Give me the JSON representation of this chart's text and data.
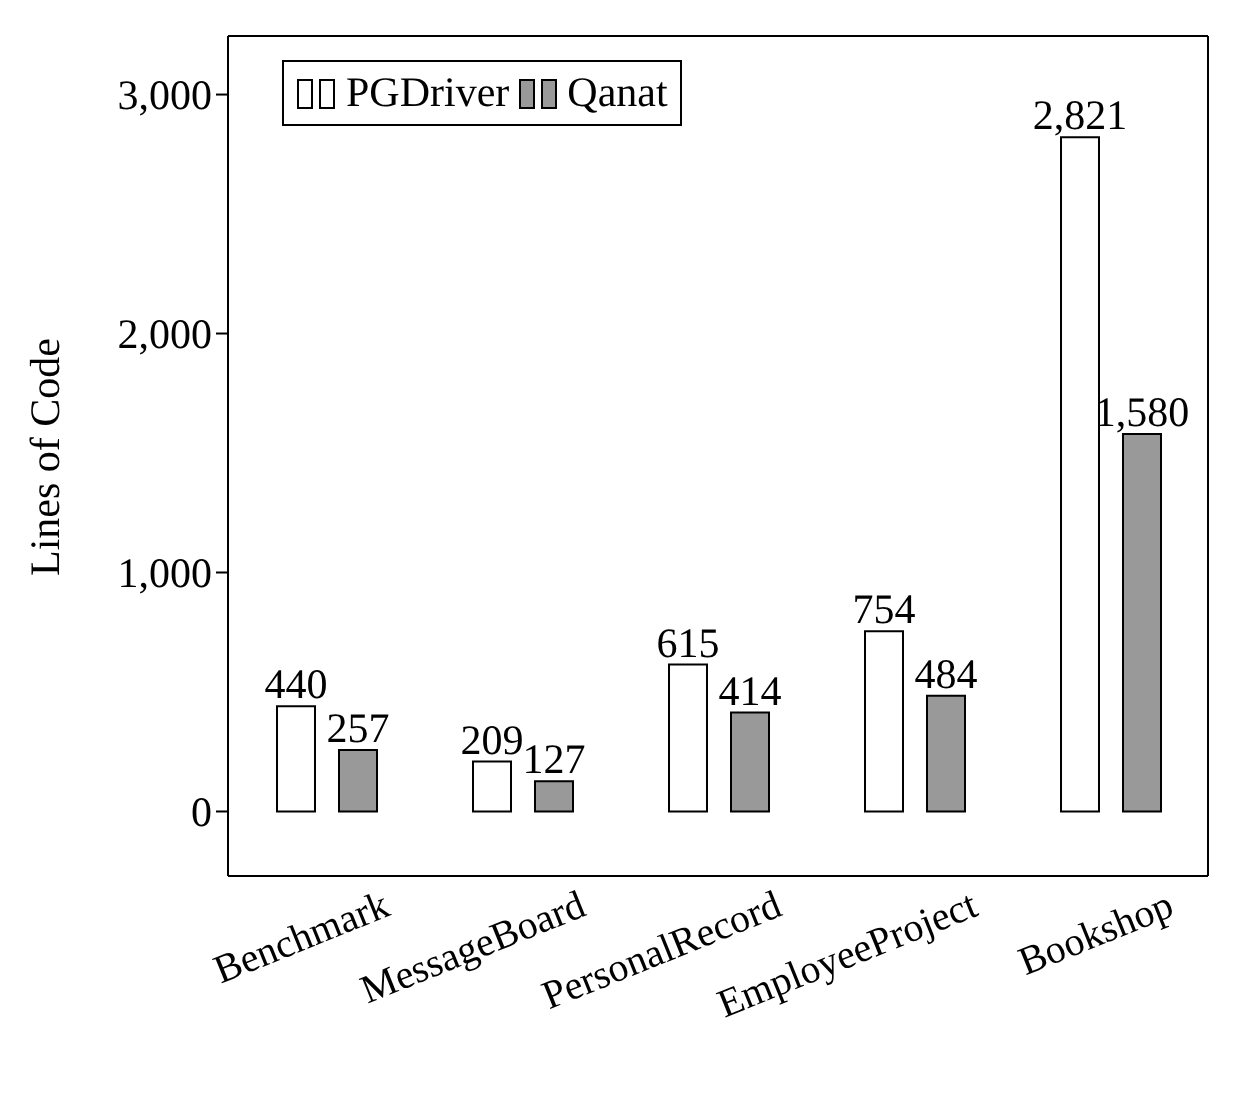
{
  "chart_data": {
    "type": "bar",
    "ylabel": "Lines of Code",
    "categories": [
      "Benchmark",
      "MessageBoard",
      "PersonalRecord",
      "EmployeeProject",
      "Bookshop"
    ],
    "series": [
      {
        "name": "PGDriver",
        "color": "#ffffff",
        "values": [
          440,
          209,
          615,
          754,
          2821
        ],
        "value_labels": [
          "440",
          "209",
          "615",
          "754",
          "2,821"
        ]
      },
      {
        "name": "Qanat",
        "color": "#999999",
        "values": [
          257,
          127,
          414,
          484,
          1580
        ],
        "value_labels": [
          "257",
          "127",
          "414",
          "484",
          "1,580"
        ]
      }
    ],
    "ylim": [
      -270,
      3245
    ],
    "yticks": [
      {
        "value": 0,
        "label": "0"
      },
      {
        "value": 1000,
        "label": "1,000"
      },
      {
        "value": 2000,
        "label": "2,000"
      },
      {
        "value": 3000,
        "label": "3,000"
      }
    ],
    "legend": "top left",
    "grid": false
  }
}
